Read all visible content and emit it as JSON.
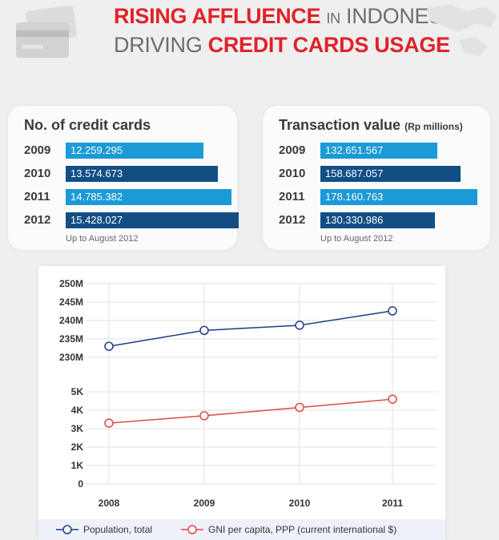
{
  "header": {
    "title_part1": "RISING AFFLUENCE",
    "title_part2": "IN",
    "title_part3": "INDONESIA",
    "subtitle_part1": "DRIVING",
    "subtitle_part2": "CREDIT CARDS USAGE"
  },
  "cards_panel": {
    "title": "No. of credit cards",
    "footnote": "Up to August 2012",
    "rows": [
      {
        "year": "2009",
        "label": "12.259.295",
        "value": 12259295,
        "color": "#1a9ad6"
      },
      {
        "year": "2010",
        "label": "13.574.673",
        "value": 13574673,
        "color": "#124e84"
      },
      {
        "year": "2011",
        "label": "14.785.382",
        "value": 14785382,
        "color": "#1a9ad6"
      },
      {
        "year": "2012",
        "label": "15.428.027",
        "value": 15428027,
        "color": "#124e84"
      }
    ]
  },
  "transaction_panel": {
    "title": "Transaction value",
    "unit": "(Rp millions)",
    "footnote": "Up to August 2012",
    "rows": [
      {
        "year": "2009",
        "label": "132.651.567",
        "value": 132651567,
        "color": "#1a9ad6"
      },
      {
        "year": "2010",
        "label": "158.687.057",
        "value": 158687057,
        "color": "#124e84"
      },
      {
        "year": "2011",
        "label": "178.160.763",
        "value": 178160763,
        "color": "#1a9ad6"
      },
      {
        "year": "2012",
        "label": "130.330.986",
        "value": 130330986,
        "color": "#124e84"
      }
    ]
  },
  "chart_data": {
    "type": "line",
    "x": [
      "2008",
      "2009",
      "2010",
      "2011"
    ],
    "grid": true,
    "legend_position": "bottom",
    "series": [
      {
        "name": "Population, total",
        "values": [
          233000000,
          237300000,
          238700000,
          242600000
        ],
        "color": "#1f3c88",
        "axis_ticks": [
          "250M",
          "245M",
          "240M",
          "235M",
          "230M"
        ],
        "ylim": [
          230000000,
          250000000
        ]
      },
      {
        "name": "GNI per capita, PPP (current international $)",
        "values": [
          3300,
          3700,
          4150,
          4600
        ],
        "color": "#e04848",
        "axis_ticks": [
          "5K",
          "4K",
          "3K",
          "2K",
          "1K",
          "0"
        ],
        "ylim": [
          0,
          5000
        ]
      }
    ]
  }
}
